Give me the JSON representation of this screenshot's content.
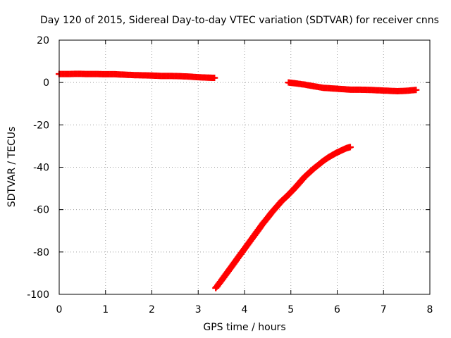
{
  "chart_data": {
    "type": "scatter",
    "title": "Day 120 of 2015, Sidereal Day-to-day VTEC variation (SDTVAR) for receiver cnns",
    "xlabel": "GPS time / hours",
    "ylabel": "SDTVAR / TECUs",
    "xlim": [
      0,
      8
    ],
    "ylim": [
      -100,
      20
    ],
    "xticks": [
      0,
      1,
      2,
      3,
      4,
      5,
      6,
      7,
      8
    ],
    "yticks": [
      -100,
      -80,
      -60,
      -40,
      -20,
      0,
      20
    ],
    "grid": true,
    "marker": "plus",
    "color": "#ff0000",
    "series": [
      {
        "x": [
          0.0,
          0.2,
          0.4,
          0.6,
          0.8,
          1.0,
          1.2,
          1.4,
          1.6,
          1.8,
          2.0,
          2.2,
          2.4,
          2.6,
          2.8,
          3.0,
          3.2,
          3.35
        ],
        "y": [
          4.0,
          4.0,
          4.1,
          4.0,
          4.0,
          3.9,
          3.9,
          3.7,
          3.5,
          3.4,
          3.3,
          3.1,
          3.1,
          3.0,
          2.8,
          2.5,
          2.3,
          2.2
        ]
      },
      {
        "x": [
          4.95,
          5.1,
          5.3,
          5.5,
          5.7,
          5.9,
          6.1,
          6.3,
          6.5,
          6.7,
          6.9,
          7.1,
          7.3,
          7.5,
          7.7
        ],
        "y": [
          0.0,
          -0.4,
          -1.0,
          -1.8,
          -2.5,
          -2.8,
          -3.1,
          -3.4,
          -3.4,
          -3.5,
          -3.7,
          -3.9,
          -4.1,
          -3.9,
          -3.5
        ]
      },
      {
        "x": [
          3.38,
          3.5,
          3.6,
          3.7,
          3.8,
          3.9,
          4.0,
          4.1,
          4.2,
          4.3,
          4.4,
          4.5,
          4.6,
          4.7,
          4.8,
          4.9,
          5.0,
          5.1,
          5.2,
          5.3,
          5.4,
          5.5,
          5.6,
          5.7,
          5.8,
          5.9,
          6.0,
          6.1,
          6.2,
          6.28
        ],
        "y": [
          -97.0,
          -93.5,
          -90.5,
          -87.5,
          -84.5,
          -81.5,
          -78.5,
          -75.5,
          -72.5,
          -69.5,
          -66.5,
          -63.8,
          -61.0,
          -58.5,
          -56.0,
          -54.0,
          -51.8,
          -49.5,
          -47.0,
          -44.5,
          -42.5,
          -40.5,
          -38.8,
          -37.0,
          -35.5,
          -34.2,
          -33.0,
          -32.0,
          -31.0,
          -30.5
        ]
      }
    ]
  }
}
